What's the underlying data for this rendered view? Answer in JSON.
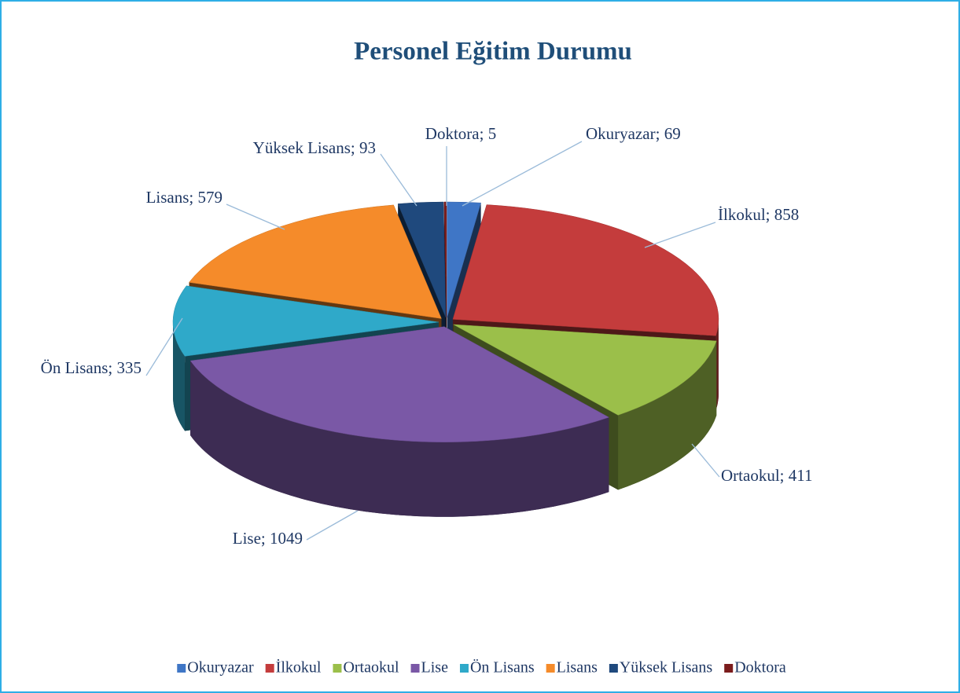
{
  "chart_data": {
    "type": "pie3d",
    "title": "Personel Eğitim Durumu",
    "categories": [
      "Okuryazar",
      "İlkokul",
      "Ortaokul",
      "Lise",
      "Ön Lisans",
      "Lisans",
      "Yüksek Lisans",
      "Doktora"
    ],
    "values": [
      69,
      858,
      411,
      1049,
      335,
      579,
      93,
      5
    ],
    "value_labels": [
      "Okuryazar; 69",
      "İlkokul; 858",
      "Ortaokul; 411",
      "Lise; 1049",
      "Ön Lisans; 335",
      "Lisans; 579",
      "Yüksek Lisans; 93",
      "Doktora; 5"
    ],
    "colors": [
      "#3f76c6",
      "#c43c3c",
      "#9bbf4a",
      "#7a58a6",
      "#2fa9c9",
      "#f58b2a",
      "#1f497d",
      "#7b1c1c"
    ],
    "legend": "bottom"
  }
}
